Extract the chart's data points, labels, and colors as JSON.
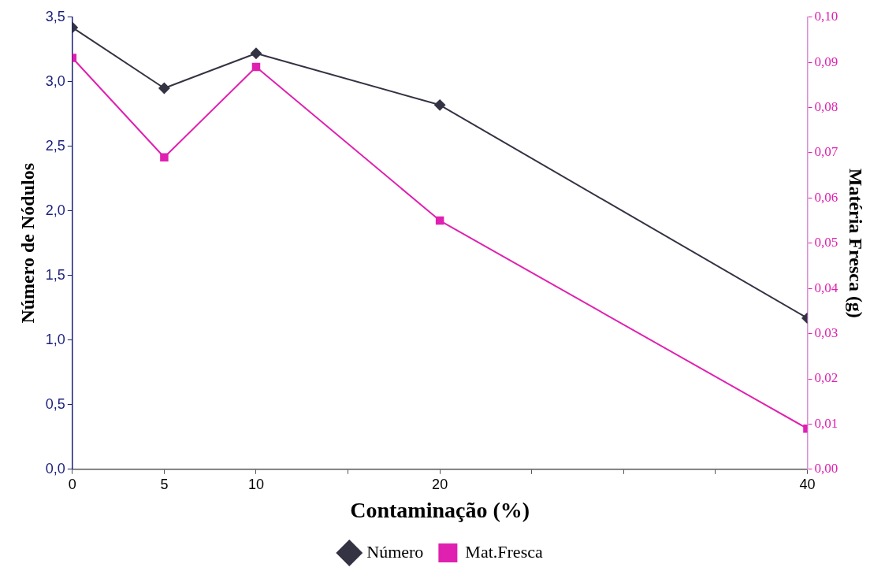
{
  "chart_data": {
    "type": "line",
    "xlabel": "Contaminação (%)",
    "ylabel": "Número de Nódulos",
    "y2label": "Matéria Fresca (g)",
    "x": [
      0,
      5,
      10,
      20,
      40
    ],
    "xlim": [
      0,
      40
    ],
    "xticks": [
      0,
      5,
      10,
      {
        "value": 15,
        "label": null
      },
      20,
      {
        "value": 25,
        "label": null
      },
      {
        "value": 30,
        "label": null
      },
      {
        "value": 35,
        "label": null
      },
      40
    ],
    "ylim": [
      0,
      3.5
    ],
    "yticks": [
      {
        "value": 0,
        "label": "0,0"
      },
      {
        "value": 0.5,
        "label": "0,5"
      },
      {
        "value": 1,
        "label": "1,0"
      },
      {
        "value": 1.5,
        "label": "1,5"
      },
      {
        "value": 2,
        "label": "2,0"
      },
      {
        "value": 2.5,
        "label": "2,5"
      },
      {
        "value": 3,
        "label": "3,0"
      },
      {
        "value": 3.5,
        "label": "3,5"
      }
    ],
    "y2lim": [
      0,
      0.1
    ],
    "y2ticks": [
      {
        "value": 0,
        "label": "0,00"
      },
      {
        "value": 0.01,
        "label": "0,01"
      },
      {
        "value": 0.02,
        "label": "0,02"
      },
      {
        "value": 0.03,
        "label": "0,03"
      },
      {
        "value": 0.04,
        "label": "0,04"
      },
      {
        "value": 0.05,
        "label": "0,05"
      },
      {
        "value": 0.06,
        "label": "0,06"
      },
      {
        "value": 0.07,
        "label": "0,07"
      },
      {
        "value": 0.08,
        "label": "0,08"
      },
      {
        "value": 0.09,
        "label": "0,09"
      },
      {
        "value": 0.1,
        "label": "0,10"
      }
    ],
    "series": [
      {
        "name": "Número",
        "color": "#333344",
        "marker": "diamond",
        "values": [
          3.42,
          2.95,
          3.22,
          2.82,
          1.17
        ]
      },
      {
        "name": "Mat.Fresca",
        "color": "#e020b0",
        "marker": "square",
        "axis": "y2",
        "values": [
          0.091,
          0.069,
          0.089,
          0.055,
          0.009
        ]
      }
    ],
    "grid": false,
    "legend": "bottom"
  }
}
